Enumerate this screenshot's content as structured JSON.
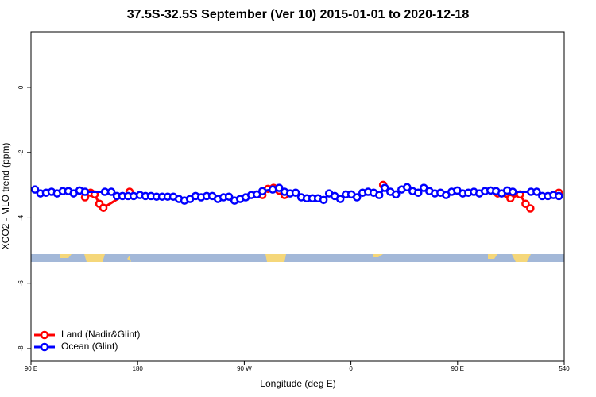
{
  "chart_data": {
    "type": "line",
    "title": "37.5S-32.5S September (Ver 10)   2015-01-01 to 2020-12-18",
    "x_label": "Longitude (deg E)",
    "y_label": "XCO2 - MLO trend (ppm)",
    "xlim": [
      90,
      540
    ],
    "xticks": [
      {
        "value": 90,
        "label": "90 E"
      },
      180,
      {
        "value": 270,
        "label": "90 W"
      },
      {
        "value": 360,
        "label": "0"
      },
      {
        "value": 450,
        "label": "90 E"
      },
      540
    ],
    "ylim": [
      -8.39,
      1.7
    ],
    "yticks": [
      0,
      -2,
      -4,
      -6,
      -8
    ],
    "legend": "bottomleft",
    "series": [
      {
        "name": "Land (Nadir&Glint)",
        "color": "#ff0000",
        "x": [
          135.6,
          140.3,
          143.7,
          147.7,
          151.1,
          173.2,
          null,
          285.3,
          290,
          294.7,
          299.4,
          304,
          null,
          387.2,
          null,
          483.9,
          494.6,
          502.7,
          507.4,
          511.4,
          null,
          535.5
        ],
        "values": [
          -3.37,
          -3.23,
          -3.28,
          -3.57,
          -3.69,
          -3.2,
          null,
          -3.3,
          -3.11,
          -3.08,
          -3.16,
          -3.3,
          null,
          -2.99,
          null,
          -3.25,
          -3.4,
          -3.28,
          -3.57,
          -3.71,
          null,
          -3.23
        ]
      },
      {
        "name": "Ocean (Glint)",
        "color": "#0000ff",
        "x": [
          93.4,
          98,
          102.7,
          107.4,
          112,
          116.8,
          121.5,
          126,
          131,
          135.6,
          152.4,
          157.8,
          162.5,
          167.2,
          171.9,
          176.6,
          181.9,
          186.6,
          191.3,
          196,
          200.7,
          205.4,
          210.1,
          214.8,
          219.5,
          224.2,
          228.9,
          233.6,
          238.3,
          243,
          247.7,
          252.4,
          257.1,
          261.8,
          266.5,
          271.2,
          275.9,
          280.6,
          285.3,
          294,
          299.4,
          304,
          308.7,
          313.4,
          318.1,
          322.8,
          327.5,
          332.2,
          336.9,
          341.6,
          346.3,
          351,
          355.7,
          360.4,
          365.1,
          369.8,
          374.5,
          379.2,
          383.9,
          388.6,
          393.3,
          398,
          402.7,
          407.4,
          412.1,
          416.8,
          421.5,
          426.2,
          430.9,
          435.6,
          440.3,
          445,
          449.7,
          454.4,
          459.1,
          463.8,
          468.4,
          473.1,
          477.8,
          482.5,
          487.2,
          491.9,
          496.6,
          512,
          516.8,
          521.5,
          526.2,
          530.9,
          535.5
        ],
        "values": [
          -3.13,
          -3.25,
          -3.23,
          -3.2,
          -3.25,
          -3.18,
          -3.18,
          -3.25,
          -3.16,
          -3.2,
          -3.2,
          -3.2,
          -3.33,
          -3.33,
          -3.33,
          -3.33,
          -3.3,
          -3.33,
          -3.33,
          -3.35,
          -3.35,
          -3.35,
          -3.35,
          -3.42,
          -3.47,
          -3.42,
          -3.33,
          -3.37,
          -3.33,
          -3.33,
          -3.42,
          -3.37,
          -3.35,
          -3.47,
          -3.42,
          -3.37,
          -3.3,
          -3.28,
          -3.18,
          -3.13,
          -3.08,
          -3.2,
          -3.25,
          -3.23,
          -3.37,
          -3.4,
          -3.4,
          -3.4,
          -3.45,
          -3.25,
          -3.33,
          -3.42,
          -3.28,
          -3.28,
          -3.37,
          -3.23,
          -3.2,
          -3.23,
          -3.3,
          -3.08,
          -3.2,
          -3.28,
          -3.13,
          -3.06,
          -3.18,
          -3.23,
          -3.08,
          -3.18,
          -3.25,
          -3.23,
          -3.3,
          -3.2,
          -3.16,
          -3.25,
          -3.23,
          -3.2,
          -3.25,
          -3.18,
          -3.16,
          -3.18,
          -3.25,
          -3.16,
          -3.2,
          -3.2,
          -3.2,
          -3.33,
          -3.33,
          -3.3,
          -3.33
        ]
      }
    ]
  }
}
